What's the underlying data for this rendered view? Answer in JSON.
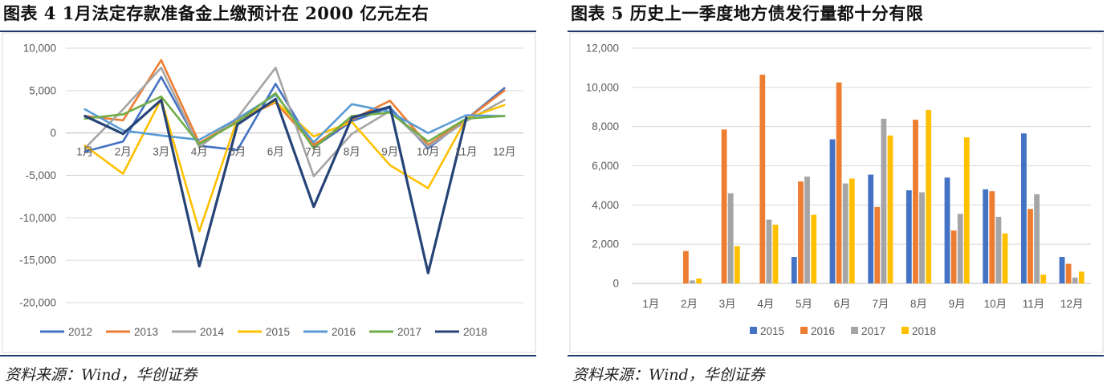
{
  "left_panel": {
    "title": "图表 4   1月法定存款准备金上缴预计在 2000 亿元左右",
    "source": "资料来源：Wind，华创证券"
  },
  "right_panel": {
    "title": "图表 5   历史上一季度地方债发行量都十分有限",
    "source": "资料来源：Wind，华创证券"
  },
  "chart_data": [
    {
      "type": "line",
      "title": "1月法定存款准备金上缴预计在 2000 亿元左右",
      "xlabel": "",
      "ylabel": "",
      "categories": [
        "1月",
        "2月",
        "3月",
        "4月",
        "5月",
        "6月",
        "7月",
        "8月",
        "9月",
        "10月",
        "11月",
        "12月"
      ],
      "ylim": [
        -20000,
        10000
      ],
      "yticks": [
        10000,
        5000,
        0,
        -5000,
        -10000,
        -15000,
        -20000
      ],
      "ytick_labels": [
        "10,000",
        "5,000",
        "0",
        "-5,000",
        "-10,000",
        "-15,000",
        "-20,000"
      ],
      "grid": true,
      "legend": "bottom",
      "series": [
        {
          "name": "2012",
          "color": "#4472C4",
          "values": [
            -2200,
            -1000,
            6600,
            -1500,
            -2000,
            5800,
            -1700,
            1400,
            3000,
            -1800,
            1600,
            5300
          ]
        },
        {
          "name": "2013",
          "color": "#ED7D31",
          "values": [
            2000,
            1500,
            8600,
            -1200,
            1500,
            3600,
            -1400,
            1600,
            3800,
            -1400,
            1600,
            5000
          ]
        },
        {
          "name": "2014",
          "color": "#A5A5A5",
          "values": [
            -1800,
            2800,
            7700,
            -1700,
            1800,
            7700,
            -5100,
            -100,
            2600,
            -1600,
            1400,
            3900
          ]
        },
        {
          "name": "2015",
          "color": "#FFC000",
          "values": [
            -1500,
            -4800,
            4000,
            -11600,
            1700,
            3700,
            -400,
            1300,
            -3800,
            -6500,
            1700,
            3300
          ]
        },
        {
          "name": "2016",
          "color": "#5B9BD5",
          "values": [
            2800,
            300,
            -300,
            -800,
            1700,
            4500,
            -1100,
            3400,
            2500,
            0,
            2100,
            2000
          ]
        },
        {
          "name": "2017",
          "color": "#70AD47",
          "values": [
            1700,
            2200,
            4300,
            -1300,
            1300,
            4700,
            -1800,
            2000,
            2400,
            -1000,
            1700,
            2000
          ]
        },
        {
          "name": "2018",
          "color": "#264478",
          "values": [
            2000,
            -100,
            3900,
            -15700,
            1000,
            4000,
            -8700,
            1800,
            3100,
            -16500,
            1800,
            null
          ]
        }
      ]
    },
    {
      "type": "bar",
      "title": "历史上一季度地方债发行量都十分有限",
      "xlabel": "",
      "ylabel": "",
      "categories": [
        "1月",
        "2月",
        "3月",
        "4月",
        "5月",
        "6月",
        "7月",
        "8月",
        "9月",
        "10月",
        "11月",
        "12月"
      ],
      "ylim": [
        0,
        12000
      ],
      "yticks": [
        0,
        2000,
        4000,
        6000,
        8000,
        10000,
        12000
      ],
      "ytick_labels": [
        "0",
        "2,000",
        "4,000",
        "6,000",
        "8,000",
        "10,000",
        "12,000"
      ],
      "grid": true,
      "legend": "bottom",
      "series": [
        {
          "name": "2015",
          "color": "#4472C4",
          "values": [
            0,
            0,
            0,
            0,
            1350,
            7350,
            5550,
            4750,
            5400,
            4800,
            7650,
            1350
          ]
        },
        {
          "name": "2016",
          "color": "#ED7D31",
          "values": [
            0,
            1650,
            7850,
            10650,
            5200,
            10250,
            3900,
            8350,
            2700,
            4700,
            3800,
            1000
          ]
        },
        {
          "name": "2017",
          "color": "#A5A5A5",
          "values": [
            0,
            150,
            4600,
            3250,
            5450,
            5100,
            8400,
            4650,
            3550,
            3400,
            4550,
            300
          ]
        },
        {
          "name": "2018",
          "color": "#FFC000",
          "values": [
            0,
            250,
            1900,
            3000,
            3500,
            5350,
            7550,
            8850,
            7450,
            2550,
            450,
            600
          ]
        }
      ]
    }
  ]
}
